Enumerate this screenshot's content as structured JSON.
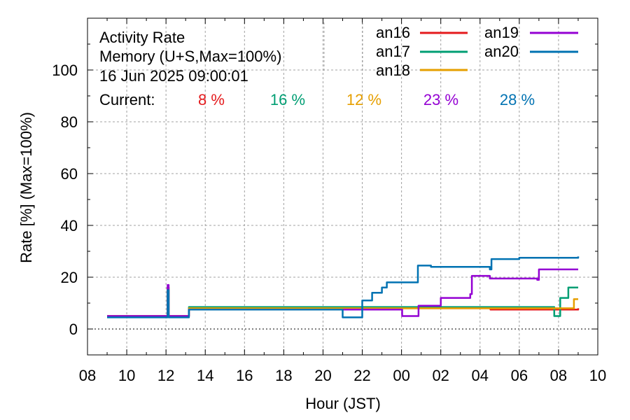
{
  "chart_data": {
    "type": "line",
    "title": "Activity Rate",
    "subtitle": "Memory (U+S,Max=100%)",
    "timestamp": "16 Jun 2025 09:00:01",
    "xlabel": "Hour (JST)",
    "ylabel": "Rate [%]  (Max=100%)",
    "xlim": [
      "2025-06-15 08:00",
      "2025-06-16 10:00"
    ],
    "ylim": [
      -10,
      120
    ],
    "x_tick_labels": [
      "08",
      "10",
      "12",
      "14",
      "16",
      "18",
      "20",
      "22",
      "00",
      "02",
      "04",
      "06",
      "08",
      "10"
    ],
    "y_tick_labels": [
      "0",
      "20",
      "40",
      "60",
      "80",
      "100"
    ],
    "y_tick_values": [
      0,
      20,
      40,
      60,
      80,
      100
    ],
    "grid": true,
    "legend_position": "top-right",
    "current_label": "Current:",
    "series": [
      {
        "name": "an16",
        "color": "#e41a1c",
        "current": "8 %",
        "points": [
          [
            "2025-06-15 09:00",
            5
          ],
          [
            "2025-06-15 12:00",
            5
          ],
          [
            "2025-06-15 12:05",
            16
          ],
          [
            "2025-06-15 12:08",
            5
          ],
          [
            "2025-06-15 12:40",
            5
          ],
          [
            "2025-06-15 13:10",
            8
          ],
          [
            "2025-06-16 04:30",
            8
          ],
          [
            "2025-06-16 04:32",
            7.5
          ],
          [
            "2025-06-16 09:00",
            8
          ]
        ]
      },
      {
        "name": "an17",
        "color": "#009e73",
        "current": "16 %",
        "points": [
          [
            "2025-06-15 09:00",
            5
          ],
          [
            "2025-06-15 12:00",
            5
          ],
          [
            "2025-06-15 12:05",
            16
          ],
          [
            "2025-06-15 12:08",
            5
          ],
          [
            "2025-06-15 12:40",
            5
          ],
          [
            "2025-06-15 13:10",
            8.5
          ],
          [
            "2025-06-16 07:45",
            8.5
          ],
          [
            "2025-06-16 07:47",
            5
          ],
          [
            "2025-06-16 07:58",
            5
          ],
          [
            "2025-06-16 08:05",
            12
          ],
          [
            "2025-06-16 08:30",
            16
          ],
          [
            "2025-06-16 09:00",
            16
          ]
        ]
      },
      {
        "name": "an18",
        "color": "#e69f00",
        "current": "12 %",
        "points": [
          [
            "2025-06-15 09:00",
            5
          ],
          [
            "2025-06-15 12:00",
            5
          ],
          [
            "2025-06-15 12:05",
            16
          ],
          [
            "2025-06-15 12:08",
            5
          ],
          [
            "2025-06-15 12:40",
            5
          ],
          [
            "2025-06-15 13:10",
            8
          ],
          [
            "2025-06-16 08:45",
            8
          ],
          [
            "2025-06-16 08:47",
            11.5
          ],
          [
            "2025-06-16 09:00",
            11.5
          ]
        ]
      },
      {
        "name": "an19",
        "color": "#9400d3",
        "current": "23 %",
        "points": [
          [
            "2025-06-15 09:00",
            5
          ],
          [
            "2025-06-15 12:00",
            5
          ],
          [
            "2025-06-15 12:05",
            17
          ],
          [
            "2025-06-15 12:08",
            5
          ],
          [
            "2025-06-15 12:40",
            5
          ],
          [
            "2025-06-15 13:10",
            7.5
          ],
          [
            "2025-06-16 00:00",
            7.5
          ],
          [
            "2025-06-16 00:02",
            5
          ],
          [
            "2025-06-16 00:50",
            5
          ],
          [
            "2025-06-16 00:52",
            9
          ],
          [
            "2025-06-16 02:00",
            12
          ],
          [
            "2025-06-16 03:30",
            13.5
          ],
          [
            "2025-06-16 03:35",
            20.5
          ],
          [
            "2025-06-16 04:30",
            19.5
          ],
          [
            "2025-06-16 06:55",
            19
          ],
          [
            "2025-06-16 07:00",
            23
          ],
          [
            "2025-06-16 09:00",
            23
          ]
        ]
      },
      {
        "name": "an20",
        "color": "#0072b2",
        "current": "28 %",
        "points": [
          [
            "2025-06-15 09:00",
            4.5
          ],
          [
            "2025-06-15 12:00",
            4.5
          ],
          [
            "2025-06-15 12:05",
            15
          ],
          [
            "2025-06-15 12:08",
            4.5
          ],
          [
            "2025-06-15 12:40",
            4.5
          ],
          [
            "2025-06-15 13:10",
            7.5
          ],
          [
            "2025-06-15 20:55",
            7.5
          ],
          [
            "2025-06-15 21:00",
            4.5
          ],
          [
            "2025-06-15 21:50",
            4.5
          ],
          [
            "2025-06-15 22:00",
            11
          ],
          [
            "2025-06-15 22:30",
            14
          ],
          [
            "2025-06-15 23:00",
            16
          ],
          [
            "2025-06-15 23:15",
            18
          ],
          [
            "2025-06-16 00:40",
            18
          ],
          [
            "2025-06-16 00:50",
            24.5
          ],
          [
            "2025-06-16 01:30",
            24
          ],
          [
            "2025-06-16 04:30",
            23
          ],
          [
            "2025-06-16 04:35",
            27
          ],
          [
            "2025-06-16 06:00",
            27.5
          ],
          [
            "2025-06-16 09:00",
            28
          ]
        ]
      }
    ]
  }
}
